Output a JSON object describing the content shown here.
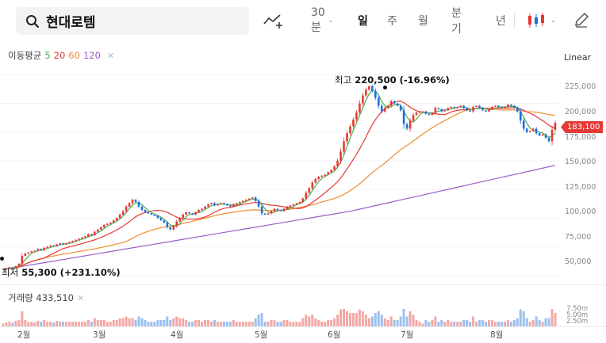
{
  "search": {
    "value": "현대로템"
  },
  "tabs": [
    {
      "label": "30분",
      "active": false
    },
    {
      "label": "일",
      "active": true
    },
    {
      "label": "주",
      "active": false
    },
    {
      "label": "월",
      "active": false
    },
    {
      "label": "분기",
      "active": false
    },
    {
      "label": "년",
      "active": false
    }
  ],
  "ma_legend": {
    "title": "이동평균",
    "p5": "5",
    "p20": "20",
    "p60": "60",
    "p120": "120"
  },
  "scale": {
    "label": "Linear"
  },
  "annotations": {
    "high": {
      "label": "최고",
      "value": "220,500 (-16.96%)"
    },
    "low": {
      "label": "최저",
      "value": "55,300 (+231.10%)"
    }
  },
  "current_price": "183,100",
  "volume_legend": {
    "title": "거래량",
    "value": "433,510"
  },
  "y_axis_labels": [
    "225,000",
    "200,000",
    "175,000",
    "150,000",
    "125,000",
    "100,000",
    "75,000",
    "50,000"
  ],
  "volume_axis_labels": [
    "7.50m",
    "5.00m",
    "2.50m"
  ],
  "x_axis_labels": [
    "2월",
    "3월",
    "4월",
    "5월",
    "6월",
    "7월",
    "8월"
  ],
  "colors": {
    "up": "#e53935",
    "down": "#1e6fd9",
    "ma5": "#4caf50",
    "ma20": "#e53935",
    "ma60": "#f08c2e",
    "ma120": "#9c5cc8"
  },
  "chart_data": {
    "type": "candlestick",
    "ylim": [
      40000,
      235000
    ],
    "y_ticks": [
      50000,
      75000,
      100000,
      125000,
      150000,
      175000,
      200000,
      225000
    ],
    "closes": [
      55300,
      56000,
      57000,
      56500,
      58000,
      60000,
      67000,
      69000,
      70000,
      71000,
      71500,
      73000,
      72000,
      74000,
      75000,
      76000,
      75500,
      77000,
      78000,
      77000,
      78000,
      79000,
      80000,
      81000,
      82000,
      83000,
      84000,
      86000,
      85000,
      88000,
      90000,
      92000,
      94000,
      95000,
      96000,
      98000,
      100000,
      103000,
      106000,
      110000,
      113000,
      116000,
      114000,
      110000,
      107000,
      105000,
      104000,
      103000,
      102000,
      100000,
      98000,
      96000,
      92000,
      90000,
      93000,
      97000,
      100000,
      103000,
      105000,
      104000,
      103000,
      105000,
      107000,
      108000,
      110000,
      112000,
      113000,
      111000,
      112000,
      113000,
      112000,
      111000,
      110000,
      112000,
      113000,
      114000,
      115000,
      116000,
      117000,
      118000,
      115000,
      110000,
      104000,
      103000,
      104000,
      106000,
      108000,
      107000,
      106000,
      108000,
      110000,
      111000,
      112000,
      113000,
      114000,
      117000,
      122000,
      126000,
      131000,
      134000,
      136000,
      137000,
      138000,
      140000,
      142000,
      145000,
      150000,
      158000,
      167000,
      174000,
      180000,
      186000,
      192000,
      200000,
      207000,
      212000,
      215000,
      211000,
      205000,
      198000,
      193000,
      196000,
      198000,
      202000,
      200000,
      198000,
      194000,
      182000,
      178000,
      185000,
      190000,
      192000,
      193000,
      193000,
      191000,
      190000,
      192000,
      196000,
      195000,
      193000,
      194000,
      196000,
      197000,
      196000,
      197000,
      198000,
      196000,
      194000,
      193000,
      197000,
      198000,
      196000,
      194000,
      193000,
      195000,
      197000,
      198000,
      197000,
      196000,
      197000,
      199000,
      198000,
      196000,
      193000,
      185000,
      178000,
      175000,
      176000,
      178000,
      174000,
      172000,
      173000,
      170000,
      167000,
      177000,
      183100
    ],
    "ma120": [
      55300,
      58000,
      61000,
      64000,
      67000,
      70000,
      73000,
      76000,
      79000,
      82000,
      85000,
      88000,
      91000,
      94000,
      97000,
      100000,
      103000,
      106000,
      110000,
      114000,
      118000,
      122000,
      126000,
      130000,
      134000,
      138000,
      142000,
      146000
    ]
  }
}
